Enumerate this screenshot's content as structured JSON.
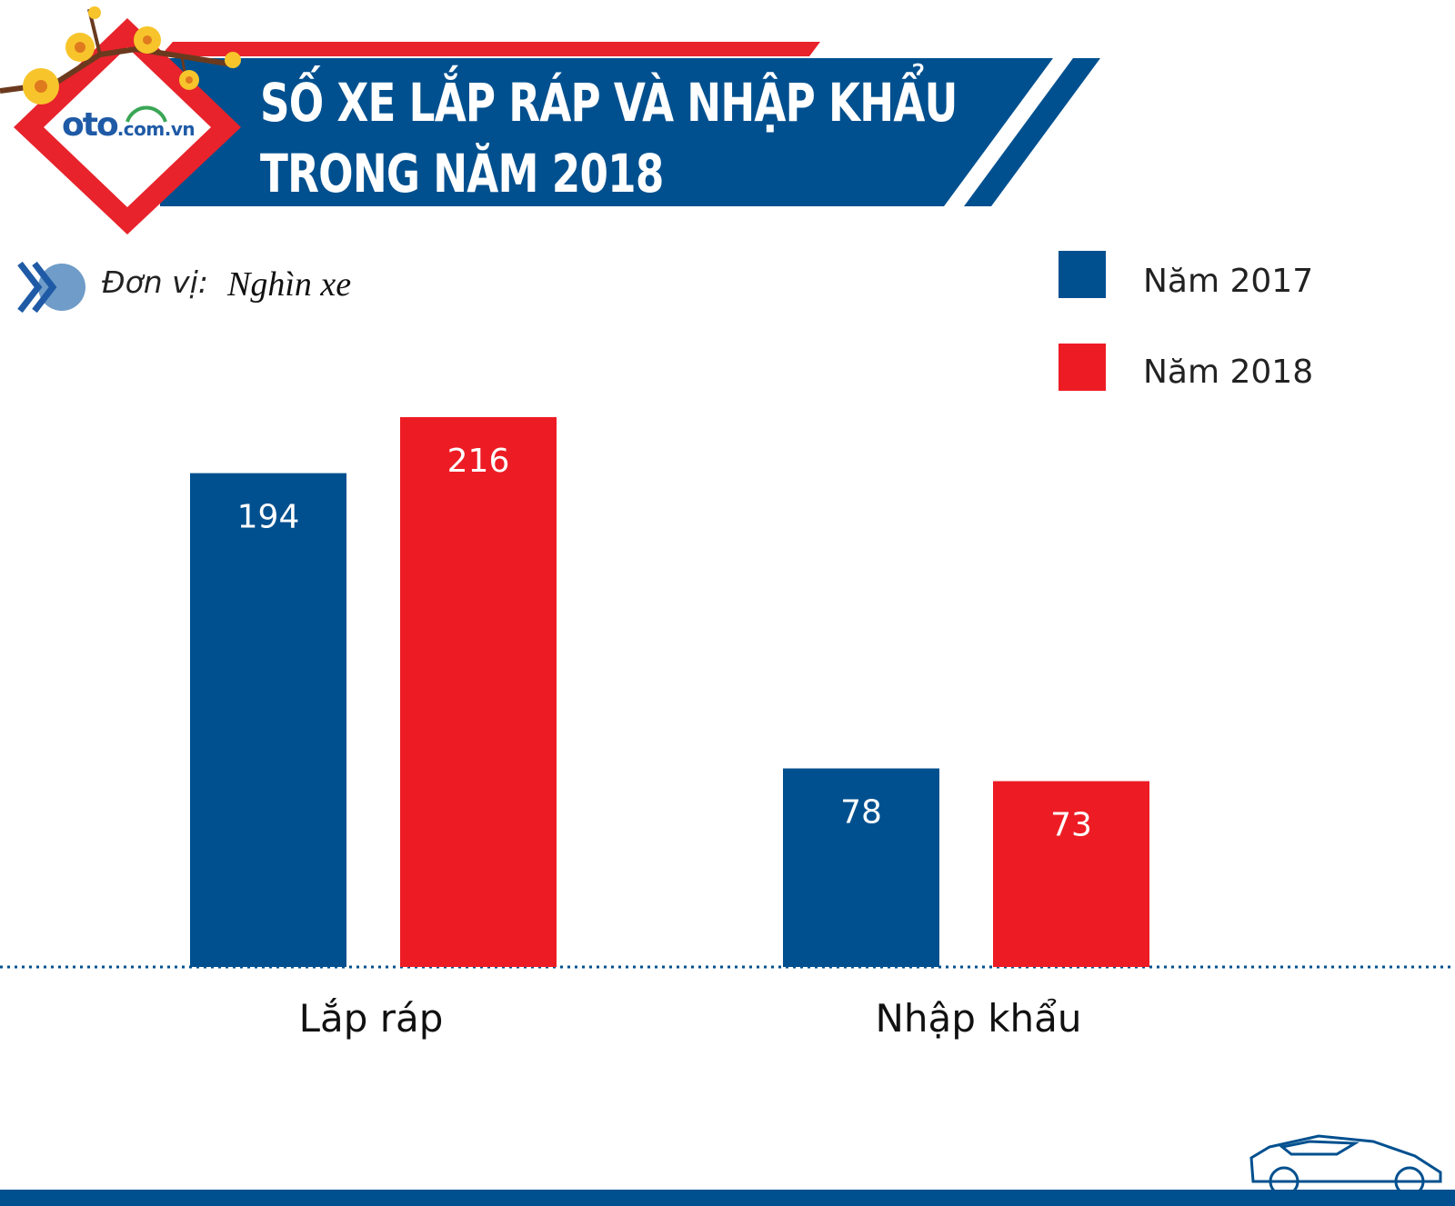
{
  "header": {
    "title_line1": "SỐ XE LẮP RÁP VÀ NHẬP KHẨU",
    "title_line2": "TRONG NĂM 2018"
  },
  "logo": {
    "main": "oto",
    "domain": ".com.vn"
  },
  "unit": {
    "label": "Đơn vị:",
    "value": "Nghìn xe"
  },
  "colors": {
    "blue": "#00508f",
    "red": "#ed1c24",
    "header_red": "#e8232b"
  },
  "icons": [
    "chevron-double-right-icon",
    "car-outline-icon",
    "apricot-blossom-icon"
  ],
  "chart_data": {
    "type": "bar",
    "categories": [
      "Lắp ráp",
      "Nhập khẩu"
    ],
    "series": [
      {
        "name": "Năm 2017",
        "values": [
          194,
          78
        ]
      },
      {
        "name": "Năm 2018",
        "values": [
          216,
          73
        ]
      }
    ],
    "ylim": [
      0,
      250
    ],
    "grid": false,
    "legend_position": "top-right",
    "data_labels": true,
    "xlabel": "",
    "ylabel": ""
  }
}
